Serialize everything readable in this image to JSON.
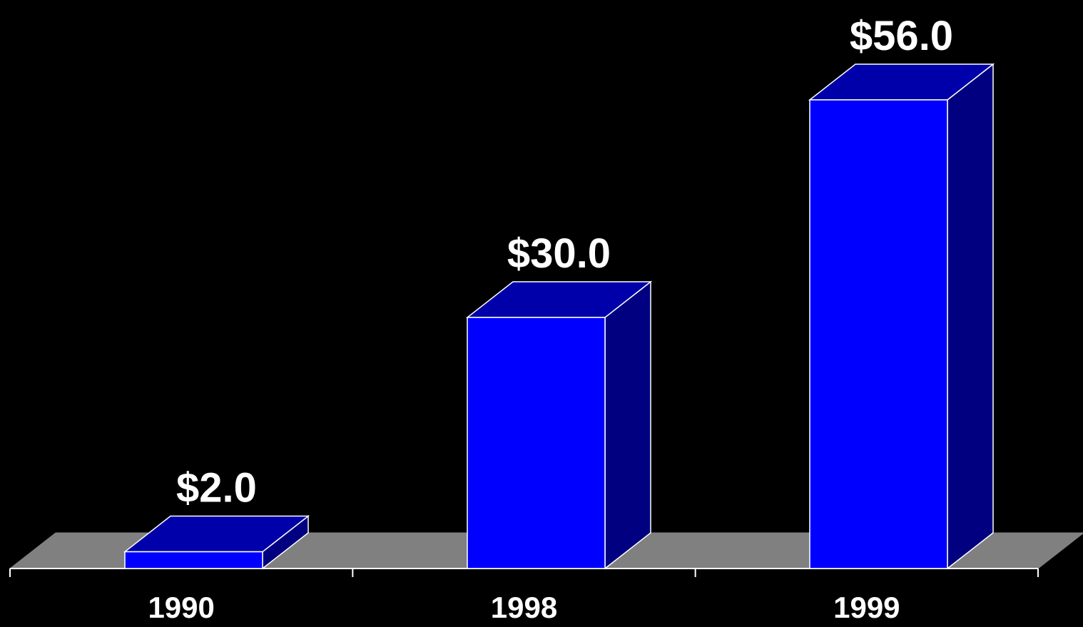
{
  "chart_data": {
    "type": "bar",
    "categories": [
      "1990",
      "1998",
      "1999"
    ],
    "values": [
      2.0,
      30.0,
      56.0
    ],
    "data_labels": [
      "$2.0",
      "$30.0",
      "$56.0"
    ],
    "title": "",
    "xlabel": "",
    "ylabel": "",
    "ylim": [
      0,
      56
    ],
    "grid": false,
    "legend": "none",
    "style": "3d"
  },
  "colors": {
    "background": "#000000",
    "bar_front": "#0000ff",
    "bar_top": "#0000aa",
    "bar_side": "#000080",
    "floor": "#808080",
    "edge": "#ffffff",
    "text": "#ffffff"
  }
}
